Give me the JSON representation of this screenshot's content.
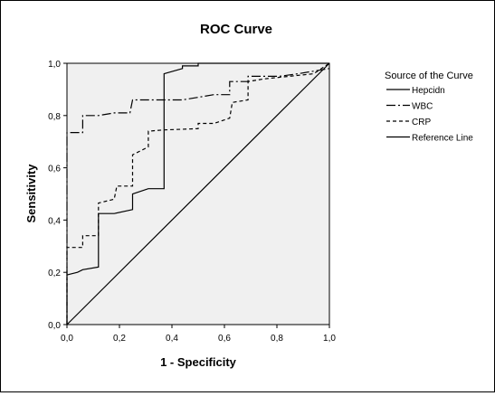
{
  "chart_data": {
    "type": "line",
    "title": "ROC Curve",
    "xlabel": "1 - Specificity",
    "ylabel": "Sensitivity",
    "xlim": [
      0,
      1
    ],
    "ylim": [
      0,
      1
    ],
    "x_ticks": [
      "0,0",
      "0,2",
      "0,4",
      "0,6",
      "0,8",
      "1,0"
    ],
    "y_ticks": [
      "0,0",
      "0,2",
      "0,4",
      "0,6",
      "0,8",
      "1,0"
    ],
    "legend_title": "Source of the Curve",
    "legend_position": "right",
    "grid": false,
    "series": [
      {
        "name": "Hepcidn",
        "style": "solid",
        "points": [
          [
            0,
            0
          ],
          [
            0,
            0.19
          ],
          [
            0.04,
            0.2
          ],
          [
            0.06,
            0.21
          ],
          [
            0.12,
            0.22
          ],
          [
            0.12,
            0.425
          ],
          [
            0.18,
            0.425
          ],
          [
            0.25,
            0.44
          ],
          [
            0.25,
            0.5
          ],
          [
            0.31,
            0.52
          ],
          [
            0.37,
            0.52
          ],
          [
            0.37,
            0.96
          ],
          [
            0.44,
            0.98
          ],
          [
            0.44,
            0.99
          ],
          [
            0.5,
            0.99
          ],
          [
            0.5,
            1.0
          ],
          [
            1,
            1
          ]
        ]
      },
      {
        "name": "WBC",
        "style": "dash-dot",
        "points": [
          [
            0,
            0
          ],
          [
            0,
            0.735
          ],
          [
            0.06,
            0.735
          ],
          [
            0.06,
            0.8
          ],
          [
            0.12,
            0.8
          ],
          [
            0.18,
            0.81
          ],
          [
            0.24,
            0.81
          ],
          [
            0.25,
            0.86
          ],
          [
            0.44,
            0.86
          ],
          [
            0.5,
            0.87
          ],
          [
            0.56,
            0.88
          ],
          [
            0.62,
            0.88
          ],
          [
            0.62,
            0.93
          ],
          [
            0.69,
            0.93
          ],
          [
            0.69,
            0.95
          ],
          [
            0.81,
            0.95
          ],
          [
            0.88,
            0.96
          ],
          [
            1,
            0.98
          ]
        ]
      },
      {
        "name": "CRP",
        "style": "dashed",
        "points": [
          [
            0,
            0
          ],
          [
            0,
            0.295
          ],
          [
            0.06,
            0.295
          ],
          [
            0.06,
            0.34
          ],
          [
            0.12,
            0.34
          ],
          [
            0.12,
            0.465
          ],
          [
            0.18,
            0.48
          ],
          [
            0.19,
            0.53
          ],
          [
            0.25,
            0.53
          ],
          [
            0.25,
            0.65
          ],
          [
            0.31,
            0.68
          ],
          [
            0.31,
            0.74
          ],
          [
            0.37,
            0.745
          ],
          [
            0.5,
            0.75
          ],
          [
            0.5,
            0.77
          ],
          [
            0.56,
            0.77
          ],
          [
            0.62,
            0.79
          ],
          [
            0.63,
            0.85
          ],
          [
            0.69,
            0.86
          ],
          [
            0.69,
            0.93
          ],
          [
            0.75,
            0.94
          ],
          [
            0.94,
            0.96
          ],
          [
            1,
            1
          ]
        ]
      },
      {
        "name": "Reference Line",
        "style": "solid",
        "points": [
          [
            0,
            0
          ],
          [
            1,
            1
          ]
        ]
      }
    ]
  }
}
